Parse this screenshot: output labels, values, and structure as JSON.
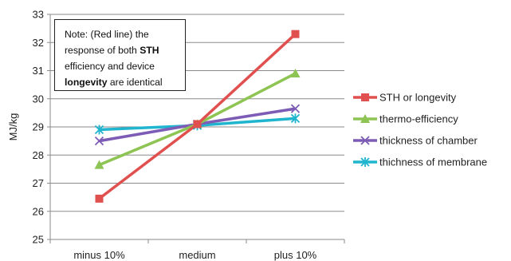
{
  "chart_data": {
    "type": "line",
    "categories": [
      "minus 10%",
      "medium",
      "plus 10%"
    ],
    "ylabel": "MJ/kg",
    "xlabel": "",
    "ylim": [
      25,
      33
    ],
    "yticks": [
      25,
      26,
      27,
      28,
      29,
      30,
      31,
      32,
      33
    ],
    "grid": "horizontal",
    "legend_position": "right",
    "series": [
      {
        "name": "STH or longevity",
        "values": [
          26.45,
          29.1,
          32.3
        ],
        "color": "#e0504f",
        "marker": "square"
      },
      {
        "name": "thermo-efficiency",
        "values": [
          27.65,
          29.1,
          30.9
        ],
        "color": "#8ec453",
        "marker": "triangle"
      },
      {
        "name": "thickness of chamber",
        "values": [
          28.5,
          29.1,
          29.65
        ],
        "color": "#7d5cb5",
        "marker": "x"
      },
      {
        "name": "thichness of membrane",
        "values": [
          28.9,
          29.05,
          29.3
        ],
        "color": "#1fb5cf",
        "marker": "star"
      }
    ],
    "annotation": {
      "parts": [
        {
          "text": "Note: (Red line) the response of both ",
          "bold": false
        },
        {
          "text": "STH",
          "bold": true
        },
        {
          "text": " efficiency and device ",
          "bold": false
        },
        {
          "text": "longevity",
          "bold": true
        },
        {
          "text": " are identical",
          "bold": false
        }
      ]
    }
  }
}
